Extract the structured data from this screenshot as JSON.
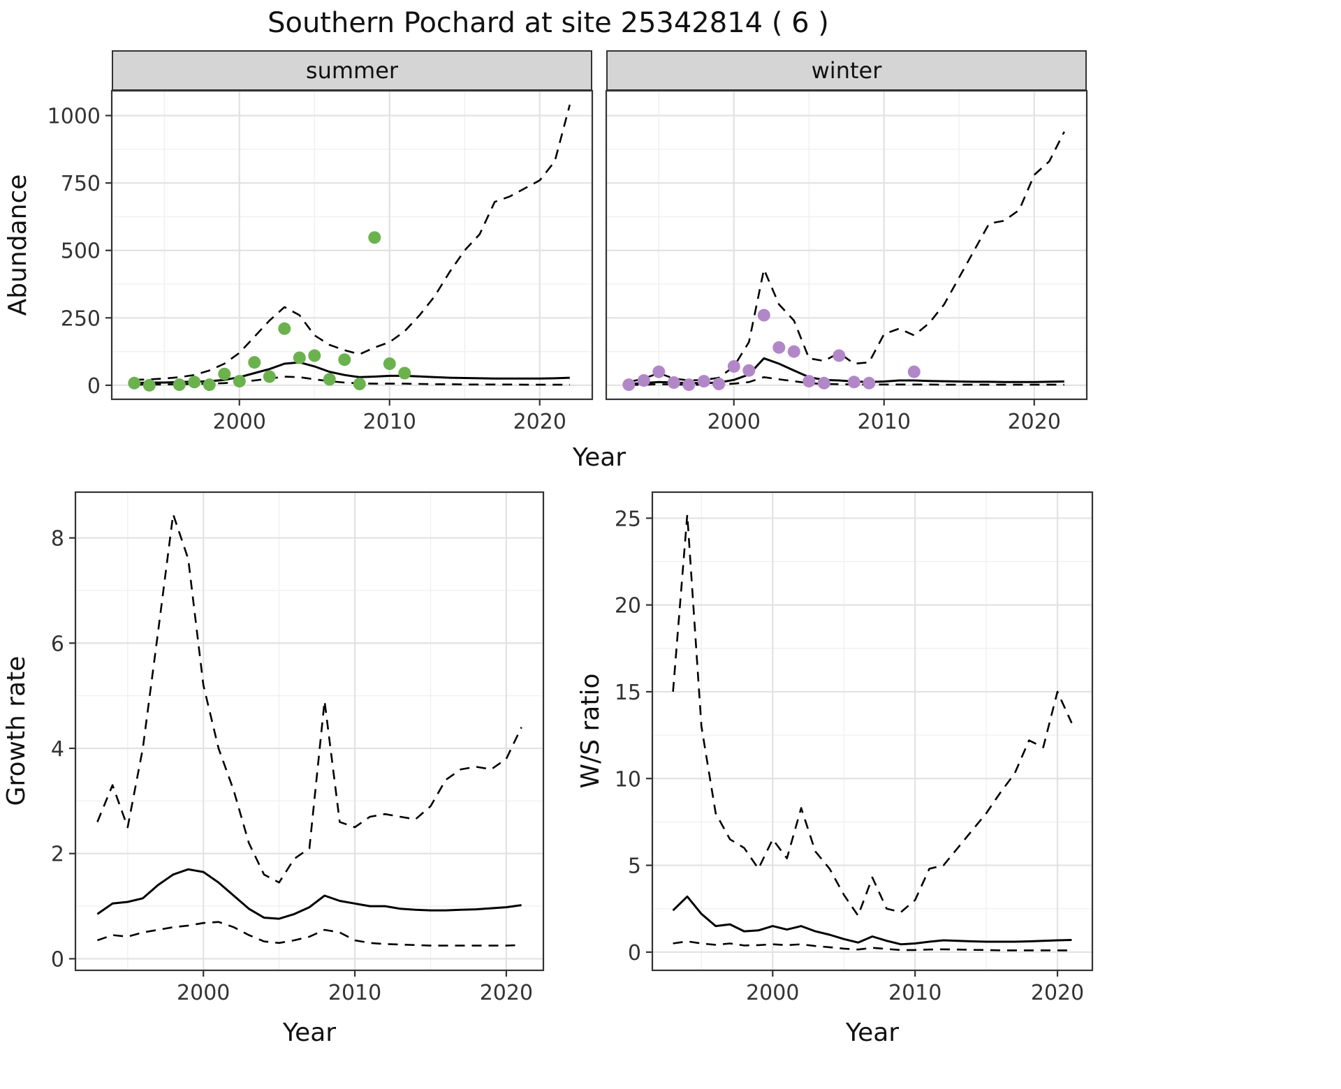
{
  "title": "Southern Pochard at site 25342814 ( 6 )",
  "labels": {
    "x_axis": "Year",
    "abundance_y": "Abundance",
    "growth_y": "Growth rate",
    "ratio_y": "W/S ratio",
    "facet_summer": "summer",
    "facet_winter": "winter"
  },
  "colors": {
    "summer_points": "#6bb24e",
    "winter_points": "#b287c8",
    "line": "#000000",
    "strip_bg": "#d5d5d5",
    "grid_major": "#e2e2e2",
    "grid_minor": "#f0f0f0",
    "panel_border": "#333333",
    "text": "#333333"
  },
  "chart_data": [
    {
      "id": "abundance_summer",
      "type": "line",
      "facet": "summer",
      "xlabel": "Year",
      "ylabel": "Abundance",
      "xlim": [
        1991.5,
        2023.5
      ],
      "ylim": [
        -52,
        1092
      ],
      "xticks": [
        2000,
        2010,
        2020
      ],
      "yticks": [
        0,
        250,
        500,
        750,
        1000
      ],
      "xminor": [
        1995,
        2005,
        2015
      ],
      "yminor": [
        125,
        375,
        625,
        875
      ],
      "grid": true,
      "legend": "none",
      "x": [
        1993,
        1994,
        1995,
        1996,
        1997,
        1998,
        1999,
        2000,
        2001,
        2002,
        2003,
        2004,
        2005,
        2006,
        2007,
        2008,
        2009,
        2010,
        2011,
        2012,
        2013,
        2014,
        2015,
        2016,
        2017,
        2018,
        2019,
        2020,
        2021,
        2022
      ],
      "series": [
        {
          "name": "upper_ci",
          "style": "dashed",
          "values": [
            20,
            22,
            25,
            30,
            38,
            55,
            80,
            120,
            180,
            240,
            290,
            260,
            185,
            150,
            130,
            115,
            140,
            160,
            200,
            260,
            330,
            420,
            500,
            560,
            680,
            700,
            730,
            760,
            830,
            1040
          ]
        },
        {
          "name": "lower_ci",
          "style": "dashed",
          "values": [
            2,
            3,
            3,
            4,
            5,
            6,
            8,
            12,
            18,
            25,
            32,
            30,
            22,
            15,
            10,
            7,
            6,
            6,
            6,
            5,
            4,
            4,
            3,
            3,
            3,
            3,
            2,
            2,
            2,
            2
          ]
        },
        {
          "name": "median_fit",
          "style": "solid",
          "values": [
            8,
            10,
            10,
            12,
            13,
            15,
            20,
            30,
            45,
            60,
            80,
            85,
            70,
            50,
            38,
            30,
            32,
            35,
            35,
            33,
            30,
            28,
            27,
            26,
            25,
            25,
            25,
            25,
            26,
            28
          ]
        }
      ],
      "points": {
        "name": "observed_counts_summer",
        "color_key": "summer_points",
        "x": [
          1993,
          1994,
          1996,
          1997,
          1998,
          1999,
          2000,
          2001,
          2002,
          2003,
          2004,
          2005,
          2006,
          2007,
          2008,
          2009,
          2010,
          2011
        ],
        "y": [
          8,
          0,
          2,
          12,
          2,
          42,
          15,
          85,
          32,
          210,
          102,
          110,
          22,
          95,
          5,
          548,
          80,
          45
        ]
      }
    },
    {
      "id": "abundance_winter",
      "type": "line",
      "facet": "winter",
      "xlabel": "Year",
      "ylabel": "Abundance",
      "xlim": [
        1991.5,
        2023.5
      ],
      "ylim": [
        -52,
        1092
      ],
      "xticks": [
        2000,
        2010,
        2020
      ],
      "yticks": [
        0,
        250,
        500,
        750,
        1000
      ],
      "xminor": [
        1995,
        2005,
        2015
      ],
      "yminor": [
        125,
        375,
        625,
        875
      ],
      "grid": true,
      "legend": "none",
      "x": [
        1993,
        1994,
        1995,
        1996,
        1997,
        1998,
        1999,
        2000,
        2001,
        2002,
        2003,
        2004,
        2005,
        2006,
        2007,
        2008,
        2009,
        2010,
        2011,
        2012,
        2013,
        2014,
        2015,
        2016,
        2017,
        2018,
        2019,
        2020,
        2021,
        2022
      ],
      "series": [
        {
          "name": "upper_ci",
          "style": "dashed",
          "values": [
            12,
            25,
            45,
            25,
            18,
            20,
            28,
            70,
            160,
            430,
            300,
            240,
            100,
            90,
            120,
            80,
            85,
            190,
            210,
            185,
            230,
            300,
            400,
            500,
            600,
            610,
            650,
            780,
            830,
            940
          ]
        },
        {
          "name": "lower_ci",
          "style": "dashed",
          "values": [
            1,
            2,
            4,
            3,
            2,
            2,
            3,
            6,
            12,
            30,
            22,
            15,
            8,
            5,
            4,
            3,
            3,
            3,
            3,
            3,
            3,
            2,
            2,
            2,
            2,
            2,
            2,
            2,
            2,
            2
          ]
        },
        {
          "name": "median_fit",
          "style": "solid",
          "values": [
            5,
            8,
            12,
            10,
            8,
            8,
            10,
            20,
            40,
            100,
            80,
            55,
            30,
            20,
            18,
            14,
            12,
            14,
            18,
            18,
            16,
            15,
            14,
            13,
            13,
            12,
            12,
            12,
            13,
            14
          ]
        }
      ],
      "points": {
        "name": "observed_counts_winter",
        "color_key": "winter_points",
        "x": [
          1993,
          1994,
          1995,
          1996,
          1997,
          1998,
          1999,
          2000,
          2001,
          2002,
          2003,
          2004,
          2005,
          2006,
          2007,
          2008,
          2009,
          2012
        ],
        "y": [
          2,
          18,
          50,
          10,
          2,
          15,
          5,
          70,
          55,
          260,
          140,
          125,
          15,
          8,
          110,
          12,
          8,
          50
        ]
      }
    },
    {
      "id": "growth_rate",
      "type": "line",
      "facet": null,
      "xlabel": "Year",
      "ylabel": "Growth rate",
      "xlim": [
        1991.55,
        2022.45
      ],
      "ylim": [
        -0.22,
        8.87
      ],
      "xticks": [
        2000,
        2010,
        2020
      ],
      "yticks": [
        0,
        2,
        4,
        6,
        8
      ],
      "xminor": [
        1995,
        2005,
        2015
      ],
      "yminor": [
        1,
        3,
        5,
        7
      ],
      "grid": true,
      "legend": "none",
      "x": [
        1993,
        1994,
        1995,
        1996,
        1997,
        1998,
        1999,
        2000,
        2001,
        2002,
        2003,
        2004,
        2005,
        2006,
        2007,
        2008,
        2009,
        2010,
        2011,
        2012,
        2013,
        2014,
        2015,
        2016,
        2017,
        2018,
        2019,
        2020,
        2021
      ],
      "series": [
        {
          "name": "upper_ci",
          "style": "dashed",
          "values": [
            2.6,
            3.3,
            2.5,
            4.0,
            6.2,
            8.45,
            7.6,
            5.2,
            4.0,
            3.2,
            2.2,
            1.6,
            1.45,
            1.9,
            2.1,
            4.9,
            2.6,
            2.5,
            2.7,
            2.75,
            2.7,
            2.65,
            2.9,
            3.4,
            3.6,
            3.65,
            3.6,
            3.8,
            4.4
          ]
        },
        {
          "name": "lower_ci",
          "style": "dashed",
          "values": [
            0.35,
            0.45,
            0.42,
            0.5,
            0.55,
            0.6,
            0.63,
            0.68,
            0.7,
            0.6,
            0.45,
            0.33,
            0.3,
            0.35,
            0.42,
            0.55,
            0.5,
            0.35,
            0.3,
            0.28,
            0.27,
            0.26,
            0.25,
            0.25,
            0.25,
            0.25,
            0.25,
            0.25,
            0.26
          ]
        },
        {
          "name": "median_fit",
          "style": "solid",
          "values": [
            0.85,
            1.05,
            1.08,
            1.15,
            1.4,
            1.6,
            1.7,
            1.65,
            1.45,
            1.2,
            0.95,
            0.78,
            0.76,
            0.85,
            0.98,
            1.2,
            1.1,
            1.05,
            1.0,
            1.0,
            0.95,
            0.93,
            0.92,
            0.92,
            0.93,
            0.94,
            0.96,
            0.98,
            1.02
          ]
        }
      ],
      "points": null
    },
    {
      "id": "ws_ratio",
      "type": "line",
      "facet": null,
      "xlabel": "Year",
      "ylabel": "W/S ratio",
      "xlim": [
        1991.55,
        2022.45
      ],
      "ylim": [
        -1.05,
        26.5
      ],
      "xticks": [
        2000,
        2010,
        2020
      ],
      "yticks": [
        0,
        5,
        10,
        15,
        20,
        25
      ],
      "xminor": [
        1995,
        2005,
        2015
      ],
      "yminor": [
        2.5,
        7.5,
        12.5,
        17.5,
        22.5
      ],
      "grid": true,
      "legend": "none",
      "x": [
        1993,
        1994,
        1995,
        1996,
        1997,
        1998,
        1999,
        2000,
        2001,
        2002,
        2003,
        2004,
        2005,
        2006,
        2007,
        2008,
        2009,
        2010,
        2011,
        2012,
        2013,
        2014,
        2015,
        2016,
        2017,
        2018,
        2019,
        2020,
        2021
      ],
      "series": [
        {
          "name": "upper_ci",
          "style": "dashed",
          "values": [
            15.0,
            25.2,
            13.0,
            8.0,
            6.5,
            6.0,
            4.8,
            6.5,
            5.4,
            8.3,
            5.8,
            4.8,
            3.3,
            2.1,
            4.3,
            2.5,
            2.3,
            3.0,
            4.8,
            5.0,
            6.0,
            7.0,
            8.0,
            9.2,
            10.3,
            12.2,
            11.8,
            15.0,
            13.2
          ]
        },
        {
          "name": "lower_ci",
          "style": "dashed",
          "values": [
            0.5,
            0.62,
            0.5,
            0.42,
            0.5,
            0.38,
            0.4,
            0.45,
            0.4,
            0.45,
            0.35,
            0.28,
            0.2,
            0.15,
            0.25,
            0.18,
            0.12,
            0.12,
            0.15,
            0.16,
            0.15,
            0.13,
            0.12,
            0.1,
            0.1,
            0.1,
            0.1,
            0.1,
            0.1
          ]
        },
        {
          "name": "median_fit",
          "style": "solid",
          "values": [
            2.4,
            3.2,
            2.2,
            1.5,
            1.6,
            1.2,
            1.25,
            1.5,
            1.3,
            1.5,
            1.2,
            1.0,
            0.75,
            0.55,
            0.9,
            0.65,
            0.45,
            0.5,
            0.6,
            0.68,
            0.65,
            0.62,
            0.6,
            0.6,
            0.6,
            0.62,
            0.65,
            0.68,
            0.7
          ]
        }
      ],
      "points": null
    }
  ]
}
